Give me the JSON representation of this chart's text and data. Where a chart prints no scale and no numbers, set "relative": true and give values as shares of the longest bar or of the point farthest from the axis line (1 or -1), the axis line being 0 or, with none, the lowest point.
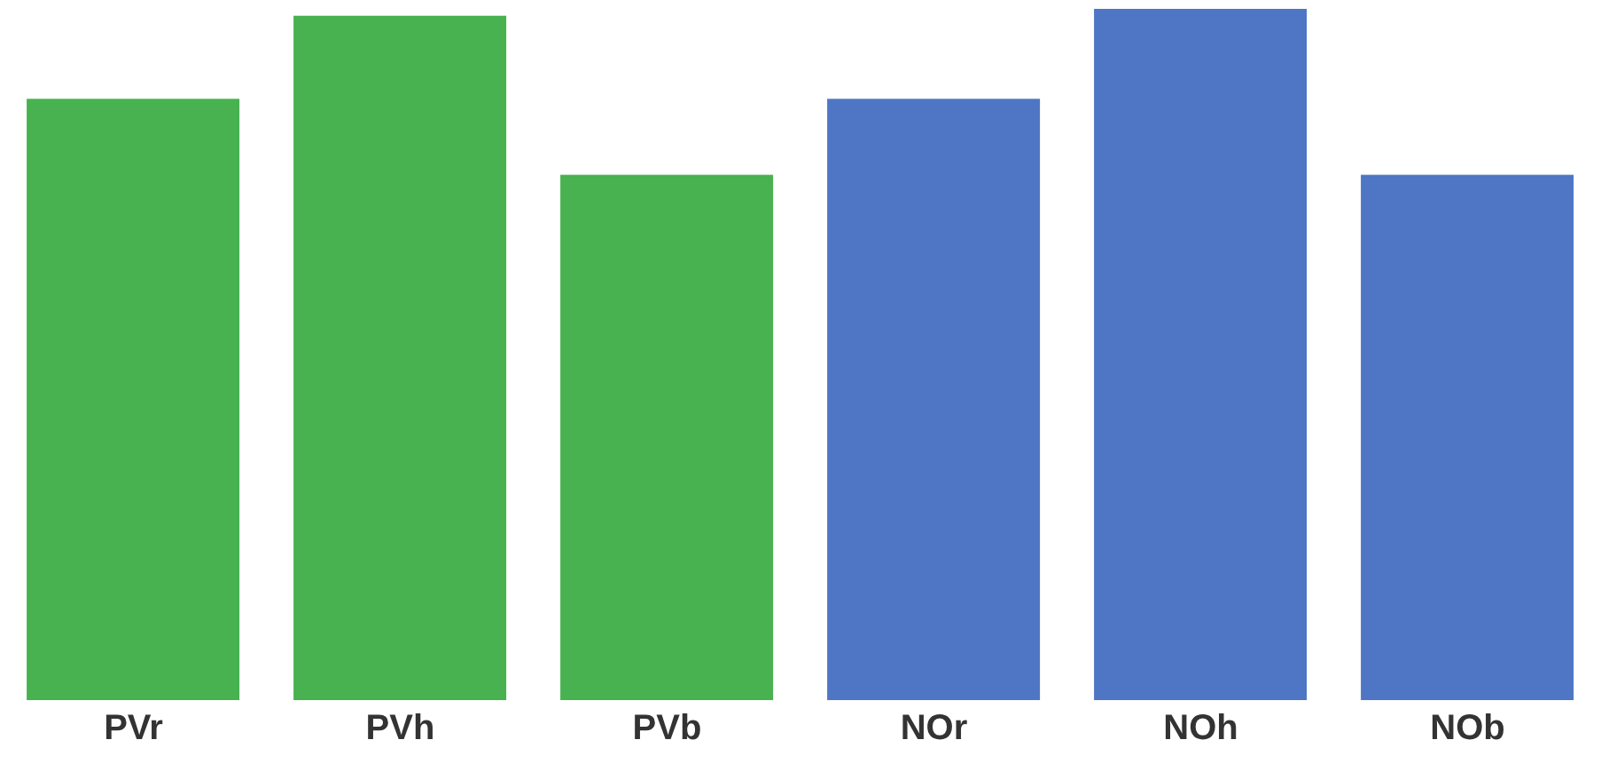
{
  "chart_data": {
    "type": "bar",
    "relative": true,
    "categories": [
      "PVr",
      "PVh",
      "PVb",
      "NOr",
      "NOh",
      "NOb"
    ],
    "values": [
      0.87,
      0.99,
      0.76,
      0.87,
      1,
      0.76
    ],
    "colors": [
      "#47b24f",
      "#47b24f",
      "#47b24f",
      "#4e76c4",
      "#4e76c4",
      "#4e76c4"
    ],
    "grid": false,
    "legend": false
  }
}
